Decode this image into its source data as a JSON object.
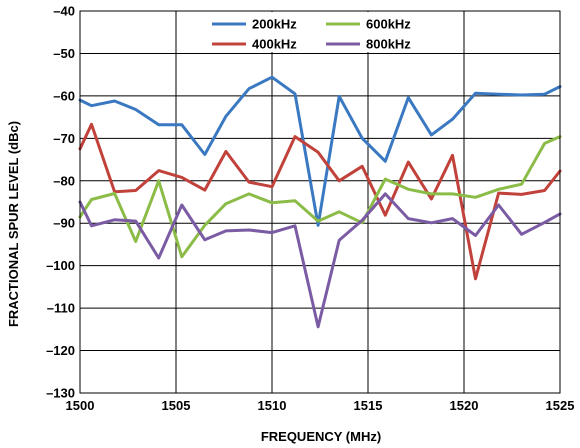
{
  "chart_data": {
    "type": "line",
    "xlabel": "FREQUENCY (MHz)",
    "ylabel": "FRACTIONAL SPUR LEVEL (dBc)",
    "xlim": [
      1500,
      1525
    ],
    "ylim": [
      -130,
      -40
    ],
    "x_ticks": [
      1500,
      1505,
      1510,
      1515,
      1520,
      1525
    ],
    "y_ticks": [
      -40,
      -50,
      -60,
      -70,
      -80,
      -90,
      -100,
      -110,
      -120,
      -130
    ],
    "y_tick_labels": [
      "–40",
      "–50",
      "–60",
      "–70",
      "–80",
      "–90",
      "–100",
      "–110",
      "–120",
      "–130"
    ],
    "grid": true,
    "legend_position": "top-center",
    "series": [
      {
        "name": "200kHz",
        "color": "#3a79c1",
        "x": [
          1500,
          1500.6,
          1501.8,
          1502.9,
          1504.1,
          1505.3,
          1506.5,
          1507.6,
          1508.8,
          1510,
          1511.2,
          1512.4,
          1513.5,
          1514.7,
          1515.9,
          1517.1,
          1518.3,
          1519.4,
          1520.6,
          1521.8,
          1523,
          1524.2,
          1525
        ],
        "y": [
          -61,
          -62.3,
          -61.2,
          -63.2,
          -66.8,
          -66.8,
          -73.8,
          -64.8,
          -58.3,
          -55.6,
          -59.5,
          -90.5,
          -60.1,
          -70,
          -75.4,
          -60.4,
          -69.2,
          -65.5,
          -59.4,
          -59.6,
          -59.8,
          -59.6,
          -57.8
        ]
      },
      {
        "name": "400kHz",
        "color": "#c1413b",
        "x": [
          1500,
          1500.6,
          1501.8,
          1502.9,
          1504.1,
          1505.3,
          1506.5,
          1507.6,
          1508.8,
          1510,
          1511.2,
          1512.4,
          1513.5,
          1514.7,
          1515.9,
          1517.1,
          1518.3,
          1519.4,
          1520.6,
          1521.8,
          1523,
          1524.2,
          1525
        ],
        "y": [
          -72.5,
          -66.7,
          -82.6,
          -82.3,
          -77.6,
          -79.2,
          -82.2,
          -73.1,
          -80.3,
          -81.4,
          -69.6,
          -73.3,
          -80,
          -76.6,
          -88.1,
          -75.6,
          -84.3,
          -74,
          -103.1,
          -82.9,
          -83.2,
          -82.3,
          -77.7
        ]
      },
      {
        "name": "600kHz",
        "color": "#8cbc48",
        "x": [
          1500,
          1500.6,
          1501.8,
          1502.9,
          1504.1,
          1505.3,
          1506.5,
          1507.6,
          1508.8,
          1510,
          1511.2,
          1512.4,
          1513.5,
          1514.7,
          1515.9,
          1517.1,
          1518.3,
          1519.4,
          1520.6,
          1521.8,
          1523,
          1524.2,
          1525
        ],
        "y": [
          -88.5,
          -84.4,
          -83,
          -94.3,
          -80,
          -97.9,
          -90.5,
          -85.4,
          -83.1,
          -85.2,
          -84.7,
          -89.5,
          -87.3,
          -89.9,
          -79.6,
          -82,
          -83.1,
          -83.1,
          -83.9,
          -82,
          -80.8,
          -71.2,
          -69.6
        ]
      },
      {
        "name": "800kHz",
        "color": "#7b5ba4",
        "x": [
          1500,
          1500.6,
          1501.8,
          1502.9,
          1504.1,
          1505.3,
          1506.5,
          1507.6,
          1508.8,
          1510,
          1511.2,
          1512.4,
          1513.5,
          1514.7,
          1515.9,
          1517.1,
          1518.3,
          1519.4,
          1520.6,
          1521.8,
          1523,
          1524.2,
          1525
        ],
        "y": [
          -85,
          -90.6,
          -89.2,
          -89.5,
          -98.2,
          -85.7,
          -93.9,
          -91.8,
          -91.6,
          -92.2,
          -90.6,
          -114.4,
          -94,
          -89.3,
          -83.1,
          -88.9,
          -89.9,
          -88.9,
          -92.9,
          -85.7,
          -92.6,
          -89.8,
          -87.8
        ]
      }
    ]
  }
}
